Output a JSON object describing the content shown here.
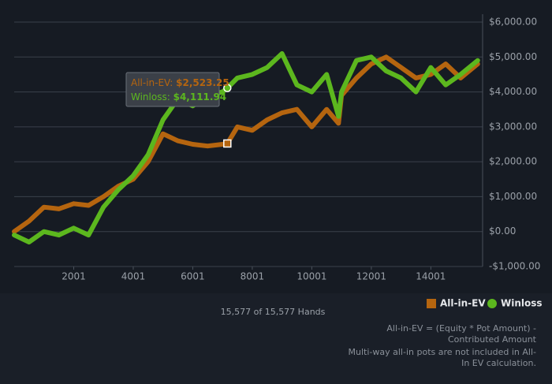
{
  "chart_data": {
    "type": "line",
    "x": [
      1,
      500,
      1000,
      1500,
      2000,
      2500,
      3000,
      3500,
      4000,
      4500,
      5000,
      5500,
      6000,
      6500,
      7000,
      7163,
      7500,
      8000,
      8500,
      9000,
      9500,
      10000,
      10500,
      10900,
      11000,
      11500,
      12000,
      12500,
      13000,
      13500,
      14000,
      14500,
      15000,
      15577
    ],
    "series": [
      {
        "name": "All-in-EV",
        "color": "#b5650f",
        "marker": "square",
        "values": [
          0,
          300,
          700,
          650,
          800,
          750,
          1000,
          1300,
          1500,
          2000,
          2800,
          2600,
          2500,
          2450,
          2500,
          2523.25,
          3000,
          2900,
          3200,
          3400,
          3500,
          3000,
          3500,
          3100,
          3900,
          4400,
          4800,
          5000,
          4700,
          4400,
          4500,
          4800,
          4400,
          4800
        ]
      },
      {
        "name": "Winloss",
        "color": "#5cb71e",
        "marker": "circle",
        "values": [
          -100,
          -300,
          0,
          -100,
          100,
          -100,
          700,
          1200,
          1600,
          2200,
          3200,
          3800,
          3600,
          3900,
          4000,
          4111.94,
          4400,
          4500,
          4700,
          5100,
          4200,
          4000,
          4500,
          3300,
          4000,
          4900,
          5000,
          4600,
          4400,
          4000,
          4700,
          4200,
          4500,
          4900
        ]
      }
    ],
    "xlim": [
      1,
      15740
    ],
    "xticks": [
      2001,
      4001,
      6001,
      8001,
      10001,
      12001,
      14001
    ],
    "ylim": [
      -1000,
      6000
    ],
    "yticks": [
      {
        "value": -1000,
        "label": "-$1,000.00"
      },
      {
        "value": 0,
        "label": "$0.00"
      },
      {
        "value": 1000,
        "label": "$1,000.00"
      },
      {
        "value": 2000,
        "label": "$2,000.00"
      },
      {
        "value": 3000,
        "label": "$3,000.00"
      },
      {
        "value": 4000,
        "label": "$4,000.00"
      },
      {
        "value": 5000,
        "label": "$5,000.00"
      },
      {
        "value": 6000,
        "label": "$6,000.00"
      }
    ],
    "grid": true,
    "legend": "bottom-right",
    "tooltip": {
      "index": 15,
      "lines": [
        {
          "label": "All-in-EV:",
          "value": "$2,523.25"
        },
        {
          "label": "Winloss:",
          "value": "$4,111.94"
        }
      ]
    },
    "caption": "15,577 of 15,577 Hands",
    "notes": [
      "All-in-EV = (Equity * Pot Amount) - Contributed Amount",
      "Multi-way all-in pots are not included in All-In EV calculation."
    ]
  }
}
